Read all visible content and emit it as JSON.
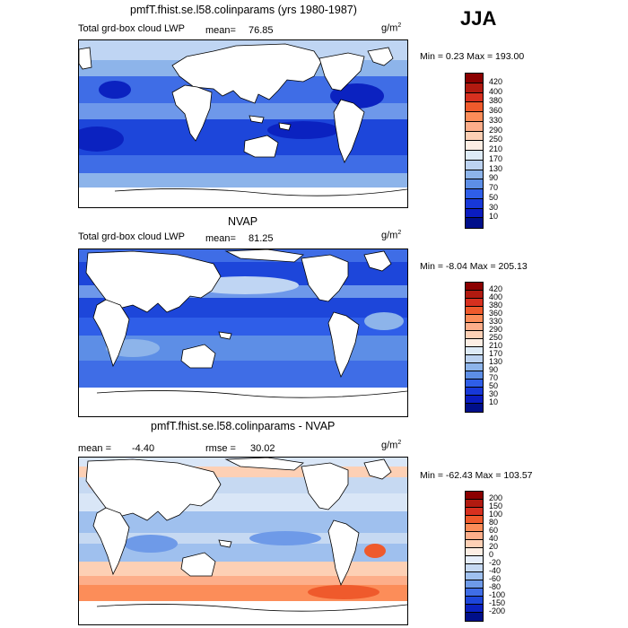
{
  "season": "JJA",
  "panels": [
    {
      "title": "pmfT.fhist.se.l58.colinparams (yrs 1980-1987)",
      "field_label": "Total grd-box cloud LWP",
      "mean_label": "mean=",
      "mean_value": "76.85",
      "unit_base": "g/m",
      "unit_exp": "2",
      "minmax": "Min =    0.23 Max = 193.00",
      "colorbar_labels": [
        "420",
        "400",
        "380",
        "360",
        "330",
        "290",
        "250",
        "210",
        "170",
        "130",
        "90",
        "70",
        "50",
        "30",
        "10"
      ],
      "colorbar_colors": [
        "#8b0000",
        "#b11a10",
        "#d7301f",
        "#ef5a2c",
        "#fc8d59",
        "#fdae8a",
        "#fdd0b5",
        "#fdeee4",
        "#deebf7",
        "#bcd2f0",
        "#8db4ea",
        "#5d8ee6",
        "#2f5ee8",
        "#1738d8",
        "#0a1cc0",
        "#000f8a"
      ]
    },
    {
      "title": "NVAP",
      "field_label": "Total grd-box cloud LWP",
      "mean_label": "mean=",
      "mean_value": "81.25",
      "unit_base": "g/m",
      "unit_exp": "2",
      "minmax": "Min =   -8.04 Max = 205.13",
      "colorbar_labels": [
        "420",
        "400",
        "380",
        "360",
        "330",
        "290",
        "250",
        "210",
        "170",
        "130",
        "90",
        "70",
        "50",
        "30",
        "10"
      ],
      "colorbar_colors": [
        "#8b0000",
        "#b11a10",
        "#d7301f",
        "#ef5a2c",
        "#fc8d59",
        "#fdae8a",
        "#fdd0b5",
        "#fdeee4",
        "#deebf7",
        "#bcd2f0",
        "#8db4ea",
        "#5d8ee6",
        "#2f5ee8",
        "#1738d8",
        "#0a1cc0",
        "#000f8a"
      ]
    },
    {
      "title": "pmfT.fhist.se.l58.colinparams - NVAP",
      "mean_label": "mean =",
      "mean_value": "-4.40",
      "rmse_label": "rmse =",
      "rmse_value": "30.02",
      "unit_base": "g/m",
      "unit_exp": "2",
      "minmax": "Min = -62.43 Max = 103.57",
      "colorbar_labels": [
        "200",
        "150",
        "100",
        "80",
        "60",
        "40",
        "20",
        "0",
        "-20",
        "-40",
        "-60",
        "-80",
        "-100",
        "-150",
        "-200"
      ],
      "colorbar_colors": [
        "#8b0000",
        "#b11a10",
        "#d7301f",
        "#ef5a2c",
        "#fc8d59",
        "#fdae8a",
        "#fdd0b5",
        "#fdeee4",
        "#e6eefa",
        "#c6d9f2",
        "#9fc0ee",
        "#6e9ae8",
        "#3f6de6",
        "#1d46da",
        "#0b22c0",
        "#000f8a"
      ]
    }
  ],
  "colors": {
    "land": "#ffffff",
    "coast": "#000000",
    "ocean_low": "#1a3fe0",
    "ocean_mid": "#6e98ea",
    "ocean_pale": "#bfd5f3",
    "diff_neutral": "#d9e6f7",
    "diff_pos": "#f6a47a",
    "diff_neg": "#7fa6ec"
  }
}
